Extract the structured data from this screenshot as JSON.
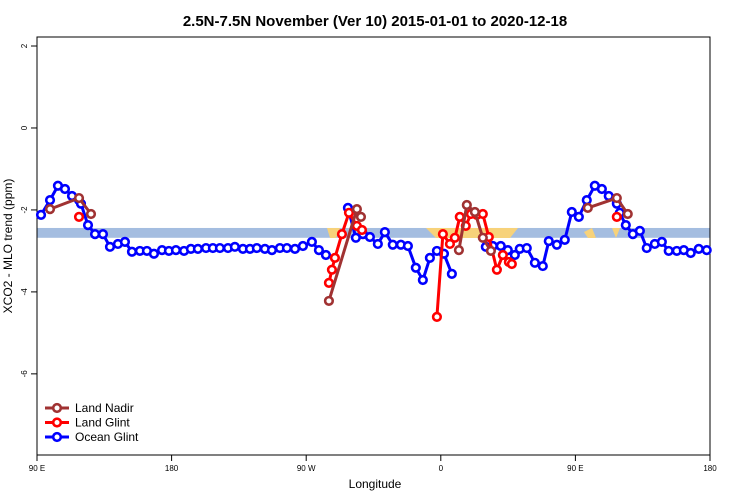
{
  "chart_data": {
    "type": "line",
    "title": "2.5N-7.5N November (Ver 10)   2015-01-01 to 2020-12-18",
    "x_label": "Longitude",
    "y_label": "XCO2 - MLO trend (ppm)",
    "xlim": [
      90,
      540
    ],
    "ylim": [
      -7.98,
      2.22
    ],
    "xticks": [
      {
        "value": 90,
        "label": "90 E"
      },
      180,
      {
        "value": 270,
        "label": "90 W"
      },
      {
        "value": 360,
        "label": "0"
      },
      {
        "value": 450,
        "label": "90 E"
      },
      {
        "value": 540,
        "label": "180"
      }
    ],
    "yticks": [
      2,
      0,
      -2,
      -4,
      -6
    ],
    "band_ylim": [
      -2.68,
      -2.44
    ],
    "band_color": "#a4bde0",
    "legend": "bottom-left",
    "series": [
      {
        "name": "Land Nadir",
        "color": "#a03232",
        "x": [
          98.7,
          118.1,
          126.1,
          null,
          285.2,
          303.9,
          306.6,
          null,
          372.1,
          377.4,
          382.8,
          388.1,
          393.5,
          null,
          458.3,
          477.7,
          485.0
        ],
        "values": [
          -1.98,
          -1.71,
          -2.1,
          null,
          -4.22,
          -1.98,
          -2.17,
          null,
          -2.98,
          -1.88,
          -2.05,
          -2.68,
          -3.0,
          null,
          -1.95,
          -1.71,
          -2.1
        ]
      },
      {
        "name": "Land Glint",
        "color": "#ff0000",
        "x": [
          118.1,
          null,
          285.2,
          287.2,
          289.2,
          293.9,
          298.6,
          303.9,
          307.3,
          null,
          357.4,
          361.4,
          366.1,
          369.4,
          372.7,
          376.7,
          380.1,
          384.1,
          388.1,
          392.1,
          397.5,
          401.5,
          405.5,
          407.5,
          null,
          477.7
        ],
        "values": [
          -2.17,
          null,
          -3.78,
          -3.46,
          -3.17,
          -2.59,
          -2.07,
          -2.39,
          -2.49,
          null,
          -4.61,
          -2.59,
          -2.83,
          -2.68,
          -2.17,
          -2.39,
          -2.1,
          -2.12,
          -2.1,
          -2.66,
          -3.46,
          -3.1,
          -3.27,
          -3.32,
          null,
          -2.17
        ]
      },
      {
        "name": "Ocean Glint",
        "color": "#0000ff",
        "x": [
          92.7,
          98.7,
          104.0,
          108.7,
          113.4,
          118.1,
          119.4,
          124.1,
          128.8,
          134.1,
          138.8,
          144.1,
          148.8,
          153.5,
          158.8,
          163.5,
          168.2,
          173.6,
          178.2,
          182.9,
          188.3,
          192.9,
          197.6,
          203.0,
          207.6,
          212.3,
          217.7,
          222.3,
          227.7,
          232.4,
          237.0,
          242.4,
          247.1,
          252.4,
          257.1,
          262.5,
          267.8,
          273.8,
          278.5,
          283.2,
          null,
          297.9,
          303.2,
          307.9,
          312.6,
          317.9,
          322.6,
          327.9,
          333.3,
          338.0,
          343.3,
          348.0,
          352.7,
          357.4,
          362.1,
          367.4,
          null,
          390.1,
          394.8,
          400.1,
          404.8,
          409.5,
          412.8,
          417.5,
          422.9,
          428.2,
          432.2,
          437.6,
          442.9,
          447.6,
          452.3,
          457.6,
          463.0,
          467.7,
          472.3,
          477.7,
          479.7,
          483.7,
          488.4,
          493.1,
          497.7,
          503.1,
          507.8,
          512.4,
          517.8,
          522.5,
          527.1,
          532.5,
          537.8
        ],
        "values": [
          -2.12,
          -1.76,
          -1.41,
          -1.49,
          -1.66,
          -1.76,
          -1.85,
          -2.37,
          -2.59,
          -2.59,
          -2.9,
          -2.83,
          -2.78,
          -3.02,
          -3.0,
          -3.0,
          -3.07,
          -2.98,
          -3.0,
          -2.98,
          -3.0,
          -2.95,
          -2.95,
          -2.93,
          -2.93,
          -2.93,
          -2.93,
          -2.9,
          -2.95,
          -2.95,
          -2.93,
          -2.95,
          -2.98,
          -2.93,
          -2.93,
          -2.95,
          -2.88,
          -2.78,
          -2.98,
          -3.1,
          null,
          -1.95,
          -2.68,
          -2.59,
          -2.66,
          -2.83,
          -2.54,
          -2.85,
          -2.85,
          -2.88,
          -3.41,
          -3.71,
          -3.17,
          -3.0,
          -3.07,
          -3.56,
          null,
          -2.9,
          -2.88,
          -2.88,
          -2.98,
          -3.1,
          -2.95,
          -2.93,
          -3.29,
          -3.37,
          -2.76,
          -2.85,
          -2.73,
          -2.05,
          -2.17,
          -1.76,
          -1.41,
          -1.49,
          -1.66,
          -1.85,
          -2.07,
          -2.37,
          -2.59,
          -2.51,
          -2.93,
          -2.83,
          -2.78,
          -3.0,
          -3.0,
          -2.98,
          -3.05,
          -2.95,
          -2.98
        ]
      }
    ]
  }
}
